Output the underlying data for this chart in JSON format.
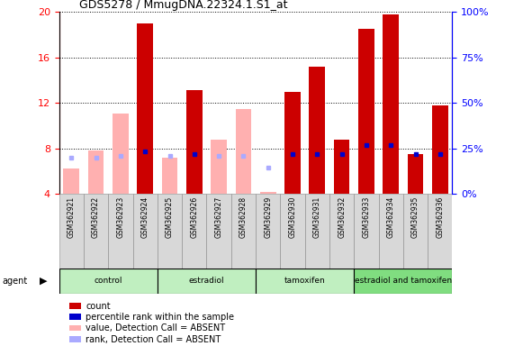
{
  "title": "GDS5278 / MmugDNA.22324.1.S1_at",
  "samples": [
    "GSM362921",
    "GSM362922",
    "GSM362923",
    "GSM362924",
    "GSM362925",
    "GSM362926",
    "GSM362927",
    "GSM362928",
    "GSM362929",
    "GSM362930",
    "GSM362931",
    "GSM362932",
    "GSM362933",
    "GSM362934",
    "GSM362935",
    "GSM362936"
  ],
  "count_values": [
    6.2,
    7.8,
    11.1,
    19.0,
    7.2,
    13.1,
    8.8,
    11.5,
    4.2,
    13.0,
    15.2,
    8.8,
    18.5,
    19.8,
    7.5,
    11.8
  ],
  "rank_pct": [
    20.0,
    20.0,
    21.0,
    23.5,
    21.0,
    22.0,
    21.0,
    21.0,
    14.5,
    22.0,
    22.0,
    22.0,
    27.0,
    27.0,
    22.0,
    22.0
  ],
  "absent_count": [
    true,
    true,
    true,
    false,
    true,
    false,
    true,
    true,
    true,
    false,
    false,
    false,
    false,
    false,
    false,
    false
  ],
  "absent_rank": [
    true,
    true,
    true,
    false,
    true,
    false,
    true,
    true,
    true,
    false,
    false,
    false,
    false,
    false,
    false,
    false
  ],
  "groups": [
    {
      "label": "control",
      "start": 0,
      "end": 4,
      "color": "#c0efc0"
    },
    {
      "label": "estradiol",
      "start": 4,
      "end": 8,
      "color": "#c0efc0"
    },
    {
      "label": "tamoxifen",
      "start": 8,
      "end": 12,
      "color": "#c0efc0"
    },
    {
      "label": "estradiol and tamoxifen",
      "start": 12,
      "end": 16,
      "color": "#80dd80"
    }
  ],
  "ylim_left": [
    4,
    20
  ],
  "ylim_right": [
    0,
    100
  ],
  "yticks_left": [
    4,
    8,
    12,
    16,
    20
  ],
  "yticks_right": [
    0,
    25,
    50,
    75,
    100
  ],
  "color_count_present": "#cc0000",
  "color_count_absent": "#ffb0b0",
  "color_rank_present": "#0000cc",
  "color_rank_absent": "#aaaaff",
  "grid_color": "#000000",
  "background_color": "#ffffff"
}
